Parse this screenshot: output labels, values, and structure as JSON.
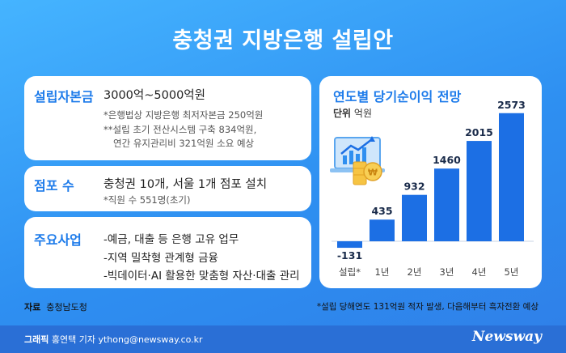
{
  "title": "충청권 지방은행 설립안",
  "rows": [
    {
      "head": "설립자본금",
      "main": "3000억~5000억원",
      "notes": [
        "*은행법상 지방은행 최저자본금 250억원",
        "**설립 초기 전산시스템 구축 834억원,",
        "연간 유지관리비 321억원 소요 예상"
      ]
    },
    {
      "head": "점포 수",
      "main": "충청권 10개, 서울 1개 점포 설치",
      "notes": [
        "*직원 수 551명(초기)"
      ]
    },
    {
      "head": "주요사업",
      "lines": [
        "-예금, 대출 등 은행 고유 업무",
        "-지역 밀착형 관계형 금융",
        "-빅데이터·AI 활용한 맞춤형 자산·대출 관리"
      ]
    }
  ],
  "chart_data": {
    "type": "bar",
    "title": "연도별 당기순이익 전망",
    "unit_prefix": "단위",
    "unit": "억원",
    "categories": [
      "설립*",
      "1년",
      "2년",
      "3년",
      "4년",
      "5년"
    ],
    "values": [
      -131,
      435,
      932,
      1460,
      2015,
      2573
    ],
    "bar_color": "#1c6fe4"
  },
  "source_label": "자료",
  "source": "충청남도청",
  "footnote": "*설립 당해연도 131억원 적자 발생, 다음해부터 흑자전환 예상",
  "credit_label": "그래픽",
  "credit": "홍연택 기자 ythong@newsway.co.kr",
  "logo": "Newsway",
  "icons": [
    "laptop-growth-icon",
    "coin-stack-icon",
    "won-coin-icon"
  ]
}
